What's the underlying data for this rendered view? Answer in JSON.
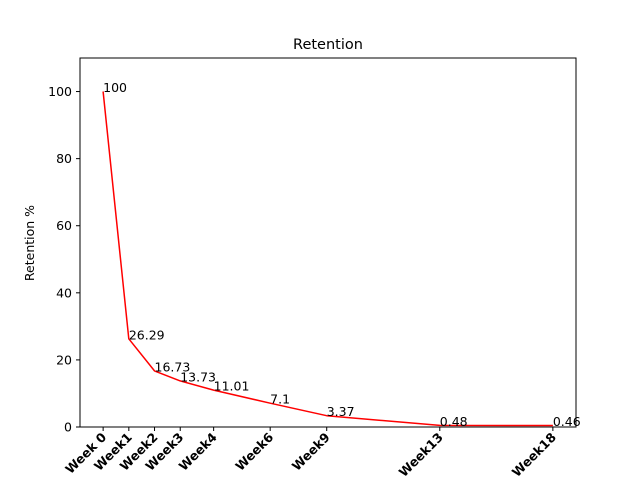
{
  "chart_data": {
    "type": "line",
    "title": "Retention",
    "xlabel": "",
    "ylabel": "Retention %",
    "categories": [
      "Week 0",
      "Week1",
      "Week2",
      "Week3",
      "Week4",
      "Week6",
      "Week9",
      "Week13",
      "Week18"
    ],
    "x": [
      0,
      1,
      2,
      3,
      4.3,
      6.5,
      8.7,
      13.1,
      17.5
    ],
    "xlim": [
      -0.9,
      18.4
    ],
    "ylim": [
      0,
      110
    ],
    "yticks": [
      0,
      20,
      40,
      60,
      80,
      100
    ],
    "grid": false,
    "series": [
      {
        "color": "#ff0000",
        "values": [
          100,
          26.29,
          16.73,
          13.73,
          11.01,
          7.1,
          3.37,
          0.48,
          0.46
        ],
        "data_labels": [
          "100",
          "26.29",
          "16.73",
          "13.73",
          "11.01",
          "7.1",
          "3.37",
          "0.48",
          "0.46"
        ]
      }
    ]
  }
}
